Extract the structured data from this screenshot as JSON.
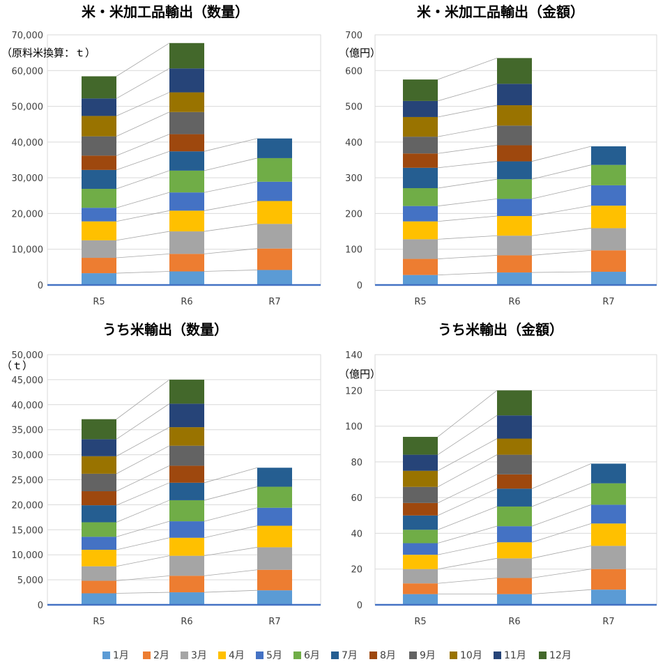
{
  "months": [
    "1月",
    "2月",
    "3月",
    "4月",
    "5月",
    "6月",
    "7月",
    "8月",
    "9月",
    "10月",
    "11月",
    "12月"
  ],
  "colors": [
    "#5B9BD5",
    "#ED7D31",
    "#A5A5A5",
    "#FFC000",
    "#4472C4",
    "#70AD47",
    "#255E91",
    "#9E480E",
    "#636363",
    "#997300",
    "#264478",
    "#43682B"
  ],
  "chart_data": [
    {
      "type": "bar",
      "stacked": true,
      "title": "米・米加工品輸出（数量）",
      "unit": "（原料米換算：ｔ）",
      "categories": [
        "R5",
        "R6",
        "R7"
      ],
      "ylim": [
        0,
        70000
      ],
      "yticks": [
        0,
        10000,
        20000,
        30000,
        40000,
        50000,
        60000,
        70000
      ],
      "ytick_labels": [
        "0",
        "10,000",
        "20,000",
        "30,000",
        "40,000",
        "50,000",
        "60,000",
        "70,000"
      ],
      "grid": true,
      "series_values": [
        [
          3300,
          3800,
          4200
        ],
        [
          4300,
          4900,
          6000
        ],
        [
          4900,
          6300,
          6900
        ],
        [
          5300,
          5800,
          6400
        ],
        [
          3800,
          5100,
          5400
        ],
        [
          5300,
          6100,
          6600
        ],
        [
          5300,
          5400,
          5500
        ],
        [
          4000,
          4800,
          null
        ],
        [
          5400,
          6200,
          null
        ],
        [
          5700,
          5500,
          null
        ],
        [
          4900,
          6700,
          null
        ],
        [
          6200,
          7100,
          null
        ]
      ]
    },
    {
      "type": "bar",
      "stacked": true,
      "title": "米・米加工品輸出（金額）",
      "unit": "（億円）",
      "categories": [
        "R5",
        "R6",
        "R7"
      ],
      "ylim": [
        0,
        700
      ],
      "yticks": [
        0,
        100,
        200,
        300,
        400,
        500,
        600,
        700
      ],
      "ytick_labels": [
        "0",
        "100",
        "200",
        "300",
        "400",
        "500",
        "600",
        "700"
      ],
      "grid": true,
      "series_values": [
        [
          28,
          35,
          37
        ],
        [
          45,
          48,
          60
        ],
        [
          55,
          55,
          62
        ],
        [
          50,
          55,
          63
        ],
        [
          43,
          48,
          57
        ],
        [
          50,
          55,
          57
        ],
        [
          57,
          50,
          52
        ],
        [
          40,
          45,
          null
        ],
        [
          47,
          55,
          null
        ],
        [
          55,
          57,
          null
        ],
        [
          45,
          60,
          null
        ],
        [
          60,
          72,
          null
        ]
      ]
    },
    {
      "type": "bar",
      "stacked": true,
      "title": "うち米輸出（数量）",
      "unit": "（ｔ）",
      "categories": [
        "R5",
        "R6",
        "R7"
      ],
      "ylim": [
        0,
        50000
      ],
      "yticks": [
        0,
        5000,
        10000,
        15000,
        20000,
        25000,
        30000,
        35000,
        40000,
        45000,
        50000
      ],
      "ytick_labels": [
        "0",
        "5,000",
        "10,000",
        "15,000",
        "20,000",
        "25,000",
        "30,000",
        "35,000",
        "40,000",
        "45,000",
        "50,000"
      ],
      "grid": true,
      "series_values": [
        [
          2300,
          2500,
          2900
        ],
        [
          2500,
          3300,
          4100
        ],
        [
          2900,
          4000,
          4500
        ],
        [
          3300,
          3600,
          4300
        ],
        [
          2600,
          3300,
          3600
        ],
        [
          2900,
          4200,
          4200
        ],
        [
          3400,
          3500,
          3800
        ],
        [
          2800,
          3400,
          null
        ],
        [
          3500,
          4000,
          null
        ],
        [
          3500,
          3700,
          null
        ],
        [
          3400,
          4700,
          null
        ],
        [
          4000,
          4800,
          null
        ]
      ]
    },
    {
      "type": "bar",
      "stacked": true,
      "title": "うち米輸出（金額）",
      "unit": "（億円）",
      "categories": [
        "R5",
        "R6",
        "R7"
      ],
      "ylim": [
        0,
        140
      ],
      "yticks": [
        0,
        20,
        40,
        60,
        80,
        100,
        120,
        140
      ],
      "ytick_labels": [
        "0",
        "20",
        "40",
        "60",
        "80",
        "100",
        "120",
        "140"
      ],
      "grid": true,
      "series_values": [
        [
          6,
          6,
          8.5
        ],
        [
          6,
          9,
          11.5
        ],
        [
          8,
          11,
          13
        ],
        [
          8,
          9,
          12.5
        ],
        [
          6.5,
          9,
          10.5
        ],
        [
          7.5,
          11,
          12
        ],
        [
          8,
          10,
          11
        ],
        [
          7,
          8,
          null
        ],
        [
          9,
          11,
          null
        ],
        [
          9,
          9,
          null
        ],
        [
          9,
          13,
          null
        ],
        [
          10,
          14,
          null
        ]
      ]
    }
  ]
}
